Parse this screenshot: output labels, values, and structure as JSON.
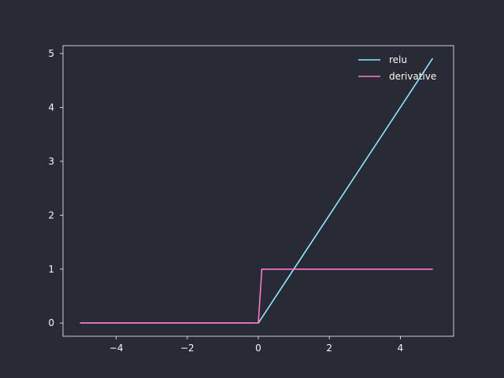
{
  "chart_data": {
    "type": "line",
    "title": "",
    "xlabel": "",
    "ylabel": "",
    "xlim": [
      -5.5,
      5.5
    ],
    "ylim": [
      -0.245,
      5.145
    ],
    "grid": false,
    "legend_position": "top-right",
    "xticks": [
      -4,
      -2,
      0,
      2,
      4
    ],
    "xtick_labels": [
      "−4",
      "−2",
      "0",
      "2",
      "4"
    ],
    "yticks": [
      0,
      1,
      2,
      3,
      4,
      5
    ],
    "ytick_labels": [
      "0",
      "1",
      "2",
      "3",
      "4",
      "5"
    ],
    "series": [
      {
        "name": "relu",
        "color": "#8be9fd",
        "x": [
          -5.0,
          -4.9,
          0.0,
          0.1,
          4.9
        ],
        "y": [
          0.0,
          0.0,
          0.0,
          0.1,
          4.9
        ]
      },
      {
        "name": "derivative",
        "color": "#ff79c6",
        "x": [
          -5.0,
          -4.9,
          0.0,
          0.1,
          4.9
        ],
        "y": [
          0.0,
          0.0,
          0.0,
          1.0,
          1.0
        ]
      }
    ]
  },
  "colors": {
    "background": "#282a36",
    "axes": "#f8f8f2"
  }
}
